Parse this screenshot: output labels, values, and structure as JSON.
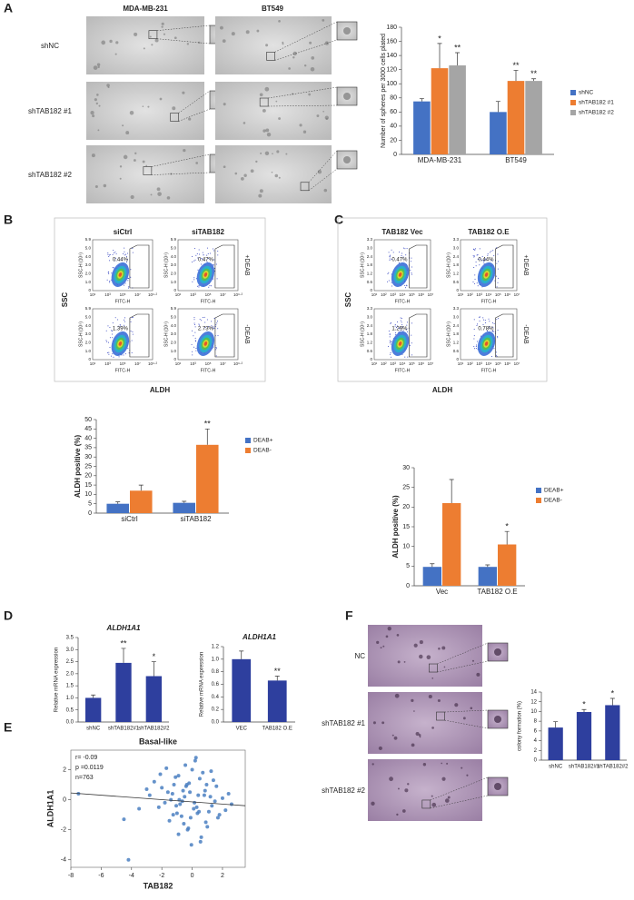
{
  "panels": {
    "A": {
      "letter": "A",
      "columns": [
        "MDA-MB-231",
        "BT549"
      ],
      "rows": [
        "shNC",
        "shTAB182 #1",
        "shTAB182 #2"
      ]
    },
    "B": {
      "letter": "B",
      "flow": {
        "columns": [
          "siCtrl",
          "siTAB182"
        ],
        "rows": [
          "+DEAB",
          "-DEAB"
        ],
        "gates": [
          [
            "0.44%",
            "0.47%"
          ],
          [
            "1.39%",
            "2.73%"
          ]
        ],
        "x_label": "FITC-H",
        "y_label": "SSC-H (10⁵)",
        "xticks": [
          "10¹",
          "10³",
          "10⁵",
          "10⁷",
          "10⁹·²"
        ],
        "yticks": [
          "0",
          "1.0",
          "2.0",
          "3.0",
          "4.0",
          "5.0",
          "5.9"
        ],
        "side_y": "SSC",
        "side_x": "ALDH"
      }
    },
    "C": {
      "letter": "C",
      "flow": {
        "columns": [
          "TAB182 Vec",
          "TAB182 O.E"
        ],
        "rows": [
          "+DEAB",
          "-DEAB"
        ],
        "gates": [
          [
            "0.47%",
            "0.44%"
          ],
          [
            "1.29%",
            "0.78%"
          ]
        ],
        "x_label": "FITC-H",
        "y_label": "SSC-H (10⁵)",
        "xticks": [
          "10¹",
          "10²",
          "10³",
          "10⁴",
          "10⁵",
          "10⁶",
          "10⁷"
        ],
        "yticks": [
          "0",
          "0.6",
          "1.2",
          "1.8",
          "2.4",
          "3.0",
          "3.3"
        ],
        "side_y": "SSC",
        "side_x": "ALDH"
      }
    },
    "D": {
      "letter": "D"
    },
    "E": {
      "letter": "E"
    },
    "F": {
      "letter": "F",
      "rows": [
        "NC",
        "shTAB182 #1",
        "shTAB182 #2"
      ]
    }
  },
  "chart_data": [
    {
      "type": "bar",
      "y_label": "Number of spheres per 3000 cells plated",
      "categories": [
        "MDA-MB-231",
        "BT549"
      ],
      "series": [
        {
          "name": "shNC",
          "color": "#4472c4",
          "values": [
            75,
            60
          ],
          "errors": [
            4,
            15
          ],
          "significance": [
            null,
            null
          ]
        },
        {
          "name": "shTAB182 #1",
          "color": "#ed7d31",
          "values": [
            122,
            104
          ],
          "errors": [
            35,
            15
          ],
          "significance": [
            "*",
            "**"
          ]
        },
        {
          "name": "shTAB182 #2",
          "color": "#a5a5a5",
          "values": [
            126,
            104
          ],
          "errors": [
            18,
            3
          ],
          "significance": [
            "**",
            "**"
          ]
        }
      ],
      "ylim": [
        0,
        180
      ],
      "yticks": [
        0,
        20,
        40,
        60,
        80,
        100,
        120,
        140,
        160,
        180
      ],
      "legend": "right"
    },
    {
      "type": "bar",
      "y_label": "ALDH positive (%)",
      "categories": [
        "siCtrl",
        "siTAB182"
      ],
      "series": [
        {
          "name": "DEAB+",
          "color": "#4472c4",
          "values": [
            5,
            5.5
          ],
          "errors": [
            1,
            0.8
          ],
          "significance": [
            null,
            null
          ]
        },
        {
          "name": "DEAB-",
          "color": "#ed7d31",
          "values": [
            12,
            36.5
          ],
          "errors": [
            3,
            8.5
          ],
          "significance": [
            null,
            "**"
          ]
        }
      ],
      "ylim": [
        0,
        50
      ],
      "yticks": [
        0,
        5,
        10,
        15,
        20,
        25,
        30,
        35,
        40,
        45,
        50
      ],
      "legend": "right"
    },
    {
      "type": "bar",
      "y_label": "ALDH positive (%)",
      "categories": [
        "Vec",
        "TAB182 O.E"
      ],
      "series": [
        {
          "name": "DEAB+",
          "color": "#4472c4",
          "values": [
            4.8,
            4.8
          ],
          "errors": [
            0.8,
            0.5
          ],
          "significance": [
            null,
            null
          ]
        },
        {
          "name": "DEAB-",
          "color": "#ed7d31",
          "values": [
            21,
            10.5
          ],
          "errors": [
            6,
            3.3
          ],
          "significance": [
            null,
            "*"
          ]
        }
      ],
      "ylim": [
        0,
        30
      ],
      "yticks": [
        0,
        5,
        10,
        15,
        20,
        25,
        30
      ],
      "legend": "right"
    },
    {
      "type": "bar",
      "title": "ALDH1A1",
      "y_label": "Relative mRNA expression",
      "categories": [
        "shNC",
        "shTAB182#1",
        "shTAB182#2"
      ],
      "color": "#2e3f9e",
      "values": [
        1.0,
        2.45,
        1.9
      ],
      "errors": [
        0.12,
        0.6,
        0.6
      ],
      "significance": [
        null,
        "**",
        "*"
      ],
      "ylim": [
        0,
        3.5
      ],
      "yticks": [
        {
          "value": 0,
          "label": "0.0"
        },
        0.5,
        {
          "value": 1,
          "label": "1.0"
        },
        1.5,
        {
          "value": 2,
          "label": "2.0"
        },
        2.5,
        {
          "value": 3,
          "label": "3.0"
        },
        3.5
      ]
    },
    {
      "type": "bar",
      "title": "ALDH1A1",
      "y_label": "Relative mRNA expression",
      "categories": [
        "VEC",
        "TAB182 O.E"
      ],
      "color": "#2e3f9e",
      "values": [
        1.0,
        0.66
      ],
      "errors": [
        0.13,
        0.07
      ],
      "significance": [
        null,
        "**"
      ],
      "ylim": [
        0,
        1.2
      ],
      "yticks": [
        {
          "value": 0,
          "label": "0.0"
        },
        0.2,
        0.4,
        0.6,
        0.8,
        {
          "value": 1,
          "label": "1.0"
        },
        1.2
      ]
    },
    {
      "type": "bar",
      "y_label": "colony formation (%)",
      "categories": [
        "shNC",
        "shTAB182#1",
        "shTAB182#2"
      ],
      "color": "#2e3f9e",
      "values": [
        6.7,
        9.9,
        11.3
      ],
      "errors": [
        1.2,
        0.5,
        1.4
      ],
      "significance": [
        null,
        "*",
        "*"
      ],
      "ylim": [
        0,
        14
      ],
      "yticks": [
        0,
        2,
        4,
        6,
        8,
        10,
        12,
        14
      ]
    },
    {
      "type": "scatter",
      "title": "Basal-like",
      "x_label": "TAB182",
      "y_label": "ALDH1A1",
      "color": "#4a7fc1",
      "annotations": [
        "r= -0.09",
        "p =0.0119",
        "n=763"
      ],
      "x": [
        -0.5,
        0.3,
        -1.2,
        0.8,
        -0.1,
        1.5,
        -2.0,
        0.0,
        -0.8,
        1.1,
        -1.6,
        0.5,
        -0.3,
        2.0,
        -2.5,
        0.9,
        -0.6,
        1.3,
        -1.0,
        0.2,
        -0.4,
        1.8,
        -1.4,
        0.6,
        -0.9,
        2.4,
        -3.0,
        0.1,
        -0.2,
        1.0,
        -1.8,
        0.4,
        -0.7,
        1.6,
        -2.2,
        0.7,
        -1.1,
        -0.05,
        1.2,
        -1.5,
        0.35,
        -0.45,
        2.2,
        -2.8,
        0.85,
        -0.55,
        1.4,
        -1.3,
        0.15,
        -0.35,
        -4.5,
        -7.5,
        -3.5,
        -4.2,
        -0.9,
        0.55,
        -0.15,
        1.7,
        -2.1,
        0.25,
        -1.05,
        0.95,
        -0.65,
        2.6,
        -1.7,
        0.45,
        -0.25,
        -0.85,
        1.25,
        -1.25
      ],
      "y": [
        0.2,
        -0.5,
        1.0,
        0.3,
        -1.2,
        -0.1,
        0.8,
        2.0,
        -0.3,
        -0.8,
        0.5,
        1.4,
        -2.0,
        0.1,
        1.2,
        -1.5,
        0.6,
        -0.4,
        -0.9,
        2.6,
        0.9,
        -1.0,
        0.0,
        -2.5,
        1.6,
        0.4,
        0.7,
        -0.6,
        1.1,
        -1.8,
        -0.2,
        0.3,
        -1.1,
        0.9,
        -0.5,
        1.8,
        1.5,
        -3.0,
        0.2,
        -1.4,
        -0.9,
        2.3,
        -0.7,
        0.3,
        0.6,
        -1.6,
        1.3,
        0.4,
        -0.2,
        1.0,
        -1.3,
        0.4,
        -0.6,
        -4.0,
        -2.3,
        -2.8,
        0.5,
        -1.2,
        1.7,
        2.8,
        -0.4,
        1.0,
        -0.1,
        -0.3,
        2.1,
        -0.8,
        -1.9,
        0.0,
        1.9,
        -1.0
      ],
      "trend_line": {
        "x": [
          -8,
          3.5
        ],
        "y": [
          0.45,
          -0.4
        ]
      },
      "xlim": [
        -8,
        3.5
      ],
      "ylim": [
        -4.5,
        3.3
      ],
      "xticks": [
        -8,
        -6,
        -4,
        -2,
        0,
        2
      ],
      "yticks": [
        -4,
        -2,
        0,
        2
      ]
    }
  ]
}
